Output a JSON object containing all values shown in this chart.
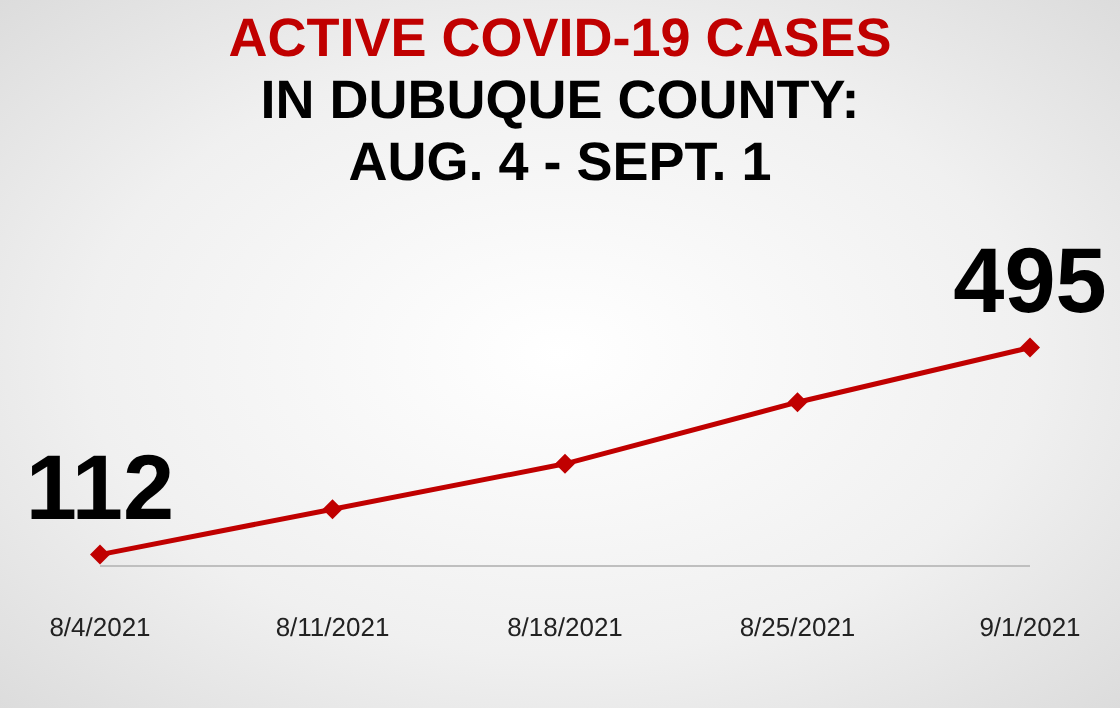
{
  "chart_data": {
    "type": "line",
    "title": "ACTIVE COVID-19 CASES",
    "subtitle": "IN DUBUQUE COUNTY: AUG. 4 - SEPT. 1",
    "categories": [
      "8/4/2021",
      "8/11/2021",
      "8/18/2021",
      "8/25/2021",
      "9/1/2021"
    ],
    "series": [
      {
        "color": "#c00000",
        "values": [
          112,
          196,
          280,
          394,
          495
        ],
        "value_labels": [
          "112",
          null,
          null,
          null,
          "495"
        ]
      }
    ],
    "marker": "diamond",
    "line_style": "solid"
  }
}
